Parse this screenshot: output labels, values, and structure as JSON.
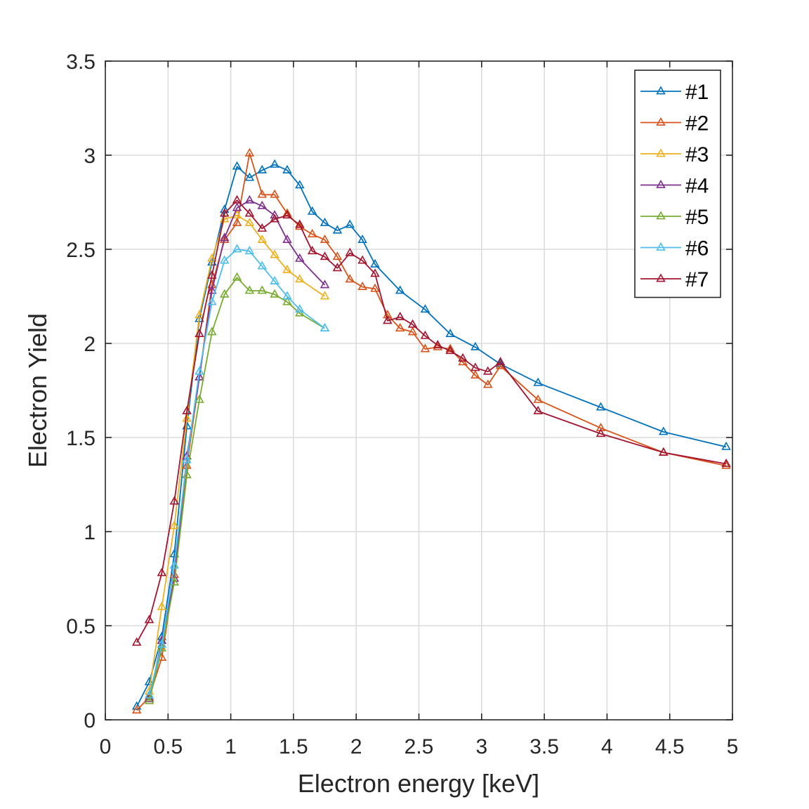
{
  "chart_data": {
    "type": "line",
    "title": "",
    "xlabel": "Electron energy [keV]",
    "ylabel": "Electron Yield",
    "xlim": [
      0,
      5
    ],
    "ylim": [
      0,
      3.5
    ],
    "xticks": [
      "0",
      "0.5",
      "1",
      "1.5",
      "2",
      "2.5",
      "3",
      "3.5",
      "4",
      "4.5",
      "5"
    ],
    "yticks": [
      "0",
      "0.5",
      "1",
      "1.5",
      "2",
      "2.5",
      "3",
      "3.5"
    ],
    "grid": true,
    "legend_position": "top-right",
    "marker": "triangle-up",
    "series": [
      {
        "name": "#1",
        "color": "#0072BD",
        "points": [
          [
            0.25,
            0.07
          ],
          [
            0.35,
            0.2
          ],
          [
            0.45,
            0.44
          ],
          [
            0.55,
            0.88
          ],
          [
            0.65,
            1.56
          ],
          [
            0.75,
            2.13
          ],
          [
            0.85,
            2.43
          ],
          [
            0.95,
            2.71
          ],
          [
            1.05,
            2.94
          ],
          [
            1.15,
            2.88
          ],
          [
            1.25,
            2.92
          ],
          [
            1.35,
            2.95
          ],
          [
            1.45,
            2.92
          ],
          [
            1.55,
            2.84
          ],
          [
            1.65,
            2.7
          ],
          [
            1.75,
            2.64
          ],
          [
            1.85,
            2.6
          ],
          [
            1.95,
            2.63
          ],
          [
            2.05,
            2.55
          ],
          [
            2.15,
            2.42
          ],
          [
            2.35,
            2.28
          ],
          [
            2.55,
            2.18
          ],
          [
            2.75,
            2.05
          ],
          [
            2.95,
            1.98
          ],
          [
            3.15,
            1.89
          ],
          [
            3.45,
            1.79
          ],
          [
            3.95,
            1.66
          ],
          [
            4.45,
            1.53
          ],
          [
            4.95,
            1.45
          ]
        ]
      },
      {
        "name": "#2",
        "color": "#D95319",
        "points": [
          [
            0.25,
            0.05
          ],
          [
            0.35,
            0.12
          ],
          [
            0.45,
            0.33
          ],
          [
            0.55,
            0.77
          ],
          [
            0.65,
            1.35
          ],
          [
            0.75,
            1.82
          ],
          [
            0.85,
            2.31
          ],
          [
            0.95,
            2.55
          ],
          [
            1.05,
            2.64
          ],
          [
            1.15,
            3.01
          ],
          [
            1.25,
            2.79
          ],
          [
            1.35,
            2.79
          ],
          [
            1.45,
            2.69
          ],
          [
            1.55,
            2.62
          ],
          [
            1.65,
            2.58
          ],
          [
            1.75,
            2.55
          ],
          [
            1.85,
            2.46
          ],
          [
            1.95,
            2.34
          ],
          [
            2.05,
            2.3
          ],
          [
            2.15,
            2.29
          ],
          [
            2.25,
            2.15
          ],
          [
            2.35,
            2.08
          ],
          [
            2.45,
            2.06
          ],
          [
            2.55,
            1.97
          ],
          [
            2.65,
            1.98
          ],
          [
            2.75,
            1.97
          ],
          [
            2.85,
            1.9
          ],
          [
            2.95,
            1.83
          ],
          [
            3.05,
            1.78
          ],
          [
            3.15,
            1.88
          ],
          [
            3.45,
            1.7
          ],
          [
            3.95,
            1.55
          ],
          [
            4.45,
            1.42
          ],
          [
            4.95,
            1.35
          ]
        ]
      },
      {
        "name": "#3",
        "color": "#EDB120",
        "points": [
          [
            0.35,
            0.15
          ],
          [
            0.45,
            0.6
          ],
          [
            0.55,
            1.03
          ],
          [
            0.65,
            1.6
          ],
          [
            0.75,
            2.15
          ],
          [
            0.85,
            2.45
          ],
          [
            0.95,
            2.66
          ],
          [
            1.05,
            2.68
          ],
          [
            1.15,
            2.64
          ],
          [
            1.25,
            2.55
          ],
          [
            1.35,
            2.47
          ],
          [
            1.45,
            2.39
          ],
          [
            1.55,
            2.34
          ],
          [
            1.75,
            2.25
          ]
        ]
      },
      {
        "name": "#4",
        "color": "#7E2F8E",
        "points": [
          [
            0.35,
            0.11
          ],
          [
            0.45,
            0.42
          ],
          [
            0.55,
            0.75
          ],
          [
            0.65,
            1.4
          ],
          [
            0.75,
            1.82
          ],
          [
            0.85,
            2.28
          ],
          [
            0.95,
            2.56
          ],
          [
            1.05,
            2.72
          ],
          [
            1.15,
            2.76
          ],
          [
            1.25,
            2.73
          ],
          [
            1.35,
            2.68
          ],
          [
            1.45,
            2.55
          ],
          [
            1.55,
            2.45
          ],
          [
            1.75,
            2.31
          ]
        ]
      },
      {
        "name": "#5",
        "color": "#77AC30",
        "points": [
          [
            0.35,
            0.1
          ],
          [
            0.45,
            0.38
          ],
          [
            0.55,
            0.73
          ],
          [
            0.65,
            1.3
          ],
          [
            0.75,
            1.7
          ],
          [
            0.85,
            2.06
          ],
          [
            0.95,
            2.26
          ],
          [
            1.05,
            2.35
          ],
          [
            1.15,
            2.28
          ],
          [
            1.25,
            2.28
          ],
          [
            1.35,
            2.26
          ],
          [
            1.45,
            2.22
          ],
          [
            1.55,
            2.16
          ],
          [
            1.75,
            2.08
          ]
        ]
      },
      {
        "name": "#6",
        "color": "#4DBEEE",
        "points": [
          [
            0.35,
            0.13
          ],
          [
            0.45,
            0.4
          ],
          [
            0.55,
            0.82
          ],
          [
            0.65,
            1.38
          ],
          [
            0.75,
            1.85
          ],
          [
            0.85,
            2.22
          ],
          [
            0.95,
            2.44
          ],
          [
            1.05,
            2.5
          ],
          [
            1.15,
            2.49
          ],
          [
            1.25,
            2.41
          ],
          [
            1.35,
            2.33
          ],
          [
            1.45,
            2.25
          ],
          [
            1.55,
            2.18
          ],
          [
            1.75,
            2.08
          ]
        ]
      },
      {
        "name": "#7",
        "color": "#A2142F",
        "points": [
          [
            0.25,
            0.41
          ],
          [
            0.35,
            0.53
          ],
          [
            0.45,
            0.78
          ],
          [
            0.55,
            1.16
          ],
          [
            0.65,
            1.64
          ],
          [
            0.75,
            2.05
          ],
          [
            0.85,
            2.36
          ],
          [
            0.95,
            2.69
          ],
          [
            1.05,
            2.76
          ],
          [
            1.15,
            2.69
          ],
          [
            1.25,
            2.61
          ],
          [
            1.35,
            2.66
          ],
          [
            1.45,
            2.68
          ],
          [
            1.55,
            2.63
          ],
          [
            1.65,
            2.49
          ],
          [
            1.75,
            2.46
          ],
          [
            1.85,
            2.4
          ],
          [
            1.95,
            2.48
          ],
          [
            2.05,
            2.44
          ],
          [
            2.15,
            2.37
          ],
          [
            2.25,
            2.12
          ],
          [
            2.35,
            2.14
          ],
          [
            2.45,
            2.1
          ],
          [
            2.55,
            2.04
          ],
          [
            2.65,
            1.99
          ],
          [
            2.75,
            1.96
          ],
          [
            2.85,
            1.92
          ],
          [
            2.95,
            1.87
          ],
          [
            3.05,
            1.85
          ],
          [
            3.15,
            1.9
          ],
          [
            3.45,
            1.64
          ],
          [
            3.95,
            1.52
          ],
          [
            4.45,
            1.42
          ],
          [
            4.95,
            1.36
          ]
        ]
      }
    ]
  }
}
